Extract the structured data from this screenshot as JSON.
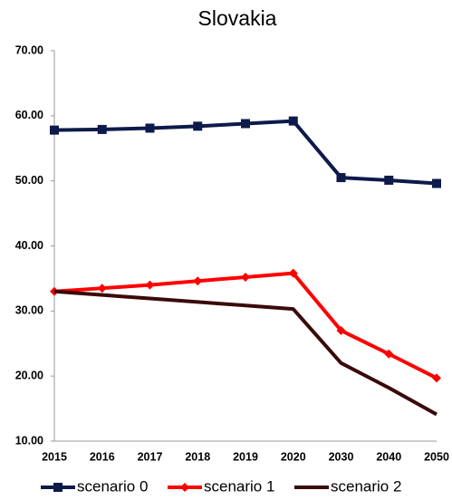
{
  "chart_data": {
    "type": "line",
    "title": "Slovakia",
    "categories": [
      "2015",
      "2016",
      "2017",
      "2018",
      "2019",
      "2020",
      "2030",
      "2040",
      "2050"
    ],
    "series": [
      {
        "name": "scenario 0",
        "color": "#0d1a4a",
        "marker": "square",
        "values": [
          57.8,
          57.9,
          58.1,
          58.4,
          58.8,
          59.2,
          50.5,
          50.1,
          49.6
        ]
      },
      {
        "name": "scenario 1",
        "color": "#ff0000",
        "marker": "diamond",
        "values": [
          33.0,
          33.5,
          34.0,
          34.6,
          35.2,
          35.8,
          27.0,
          23.4,
          19.7
        ]
      },
      {
        "name": "scenario 2",
        "color": "#3a0a0a",
        "marker": "none",
        "values": [
          33.0,
          32.46,
          31.92,
          31.38,
          30.84,
          30.3,
          22.0,
          18.2,
          14.1
        ]
      }
    ],
    "ylim": [
      10,
      70
    ],
    "yticks": [
      {
        "value": 10,
        "label": "10.00"
      },
      {
        "value": 20,
        "label": "20.00"
      },
      {
        "value": 30,
        "label": "30.00"
      },
      {
        "value": 40,
        "label": "40.00"
      },
      {
        "value": 50,
        "label": "50.00"
      },
      {
        "value": 60,
        "label": "60.00"
      },
      {
        "value": 70,
        "label": "70.00"
      }
    ],
    "grid": false,
    "legend": "bottom"
  }
}
